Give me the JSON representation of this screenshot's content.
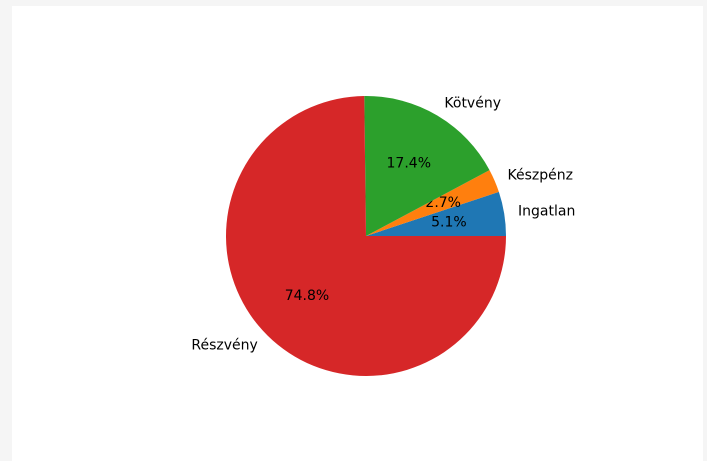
{
  "chart_data": {
    "type": "pie",
    "slices": [
      {
        "label": "Ingatlan",
        "value": 5.1,
        "pct_label": "5.1%",
        "color": "#1f77b4"
      },
      {
        "label": "Készpénz",
        "value": 2.7,
        "pct_label": "2.7%",
        "color": "#ff7f0e"
      },
      {
        "label": "Kötvény",
        "value": 17.4,
        "pct_label": "17.4%",
        "color": "#2ca02c"
      },
      {
        "label": "Részvény",
        "value": 74.8,
        "pct_label": "74.8%",
        "color": "#d62728"
      }
    ],
    "start_angle_deg": 0,
    "direction": "counterclockwise",
    "legend": "none"
  }
}
